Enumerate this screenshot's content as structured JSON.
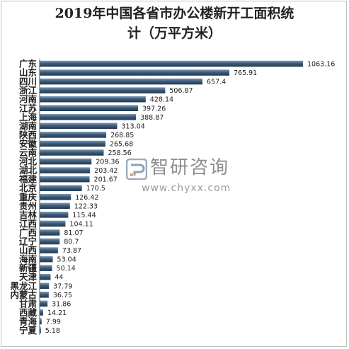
{
  "chart_data": {
    "type": "bar",
    "orientation": "horizontal",
    "title_line1": "2019年中国各省市办公楼新开工面积统",
    "title_line2": "计（万平方米）",
    "categories": [
      "广东",
      "山东",
      "四川",
      "浙江",
      "河南",
      "江苏",
      "上海",
      "湖南",
      "陕西",
      "安徽",
      "云南",
      "河北",
      "湖北",
      "福建",
      "北京",
      "重庆",
      "贵州",
      "吉林",
      "江西",
      "广西",
      "辽宁",
      "山西",
      "海南",
      "新疆",
      "天津",
      "黑龙江",
      "内蒙古",
      "甘肃",
      "西藏",
      "青海",
      "宁夏"
    ],
    "values": [
      1063.16,
      765.91,
      657.4,
      506.87,
      428.14,
      397.26,
      388.87,
      313.04,
      268.85,
      265.68,
      258.56,
      209.36,
      203.42,
      201.67,
      170.5,
      126.42,
      122.33,
      115.44,
      104.11,
      81.07,
      80.7,
      73.87,
      53.04,
      50.14,
      44,
      37.79,
      36.75,
      31.86,
      14.21,
      7.99,
      5.18
    ],
    "value_labels": [
      "1063.16",
      "765.91",
      "657.4",
      "506.87",
      "428.14",
      "397.26",
      "388.87",
      "313.04",
      "268.85",
      "265.68",
      "258.56",
      "209.36",
      "203.42",
      "201.67",
      "170.5",
      "126.42",
      "122.33",
      "115.44",
      "104.11",
      "81.07",
      "80.7",
      "73.87",
      "53.04",
      "50.14",
      "44",
      "37.79",
      "36.75",
      "31.86",
      "14.21",
      "7.99",
      "5.18"
    ],
    "bar_color": "#2e4a66",
    "grid": false,
    "legend": "none"
  },
  "watermark": {
    "name": "智研咨询",
    "url": "www.chyxx.com"
  }
}
